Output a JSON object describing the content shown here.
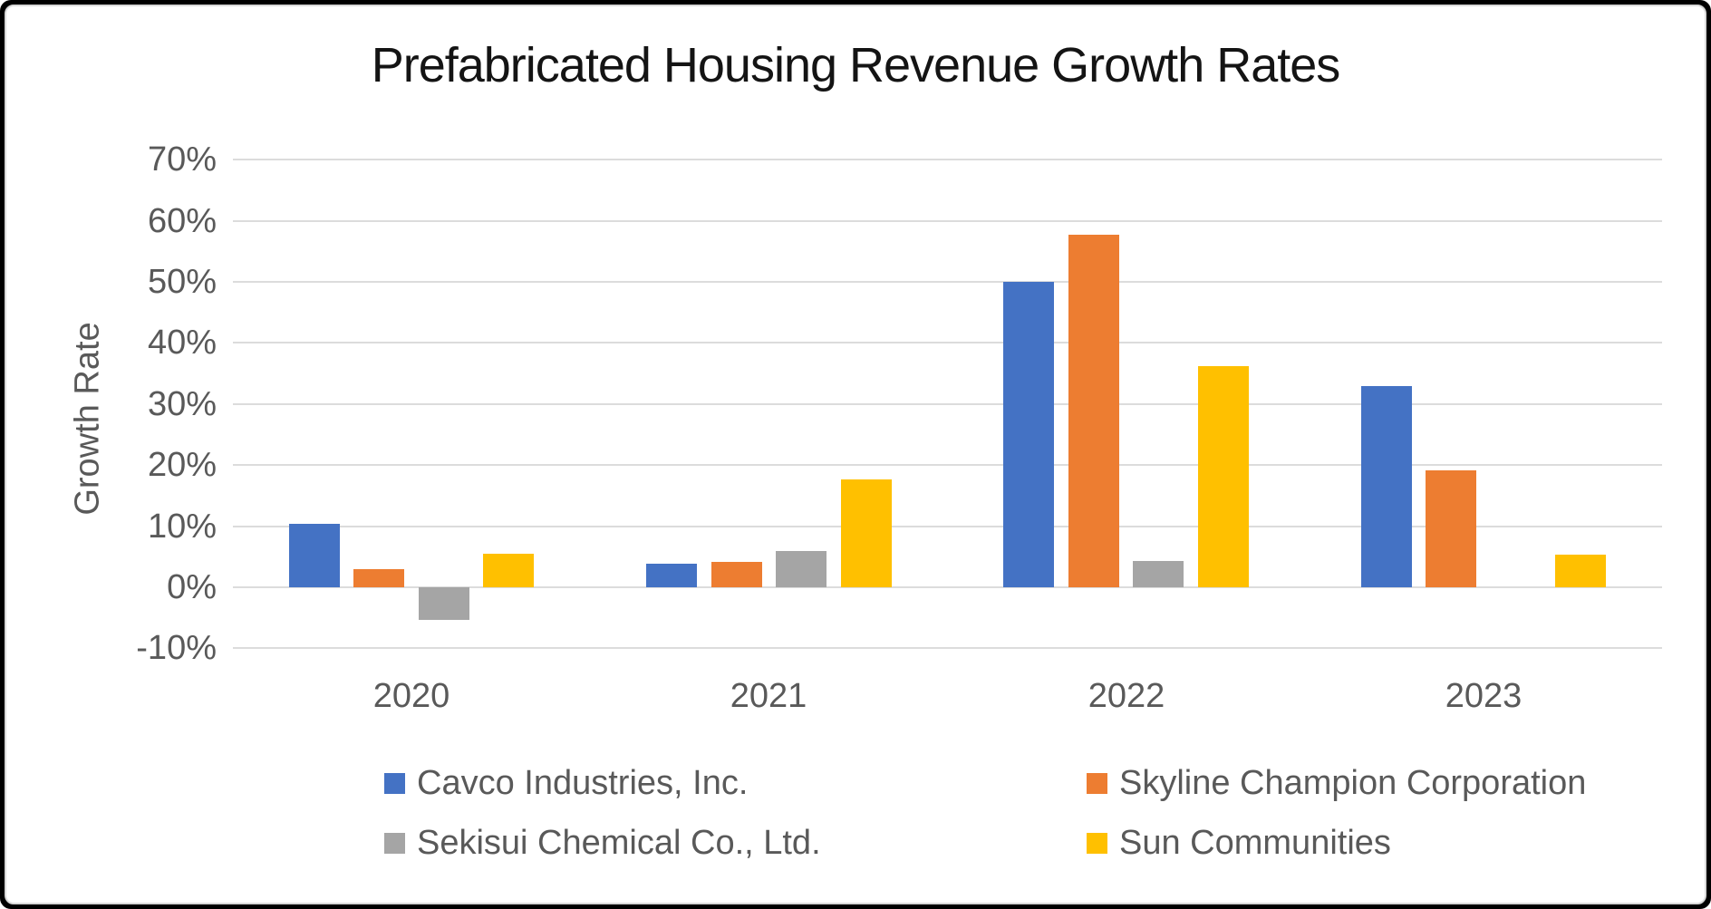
{
  "chart_data": {
    "type": "bar",
    "title": "Prefabricated Housing Revenue Growth Rates",
    "ylabel": "Growth Rate",
    "xlabel": "",
    "categories": [
      "2020",
      "2021",
      "2022",
      "2023"
    ],
    "series": [
      {
        "name": "Cavco Industries, Inc.",
        "color": "#4472C4",
        "values": [
          10.4,
          3.8,
          50.0,
          33.0
        ]
      },
      {
        "name": "Skyline Champion Corporation",
        "color": "#ED7D31",
        "values": [
          3.0,
          4.1,
          57.7,
          19.2
        ]
      },
      {
        "name": "Sekisui Chemical Co., Ltd.",
        "color": "#A5A5A5",
        "values": [
          -5.4,
          6.0,
          4.3,
          null
        ]
      },
      {
        "name": "Sun Communities",
        "color": "#FFC000",
        "values": [
          5.5,
          17.7,
          36.2,
          5.4
        ]
      }
    ],
    "ylim": [
      -10,
      70
    ],
    "ytick_step": 10,
    "ytick_labels": [
      "70%",
      "60%",
      "50%",
      "40%",
      "30%",
      "20%",
      "10%",
      "0%",
      "-10%"
    ],
    "ytick_format": "percent",
    "grid": true,
    "legend_position": "bottom"
  },
  "colors": {
    "gridline": "#dcdcdc",
    "axis_text": "#595959",
    "title_text": "#141414",
    "frame": "#000000",
    "card_border": "#d9d9d9"
  }
}
